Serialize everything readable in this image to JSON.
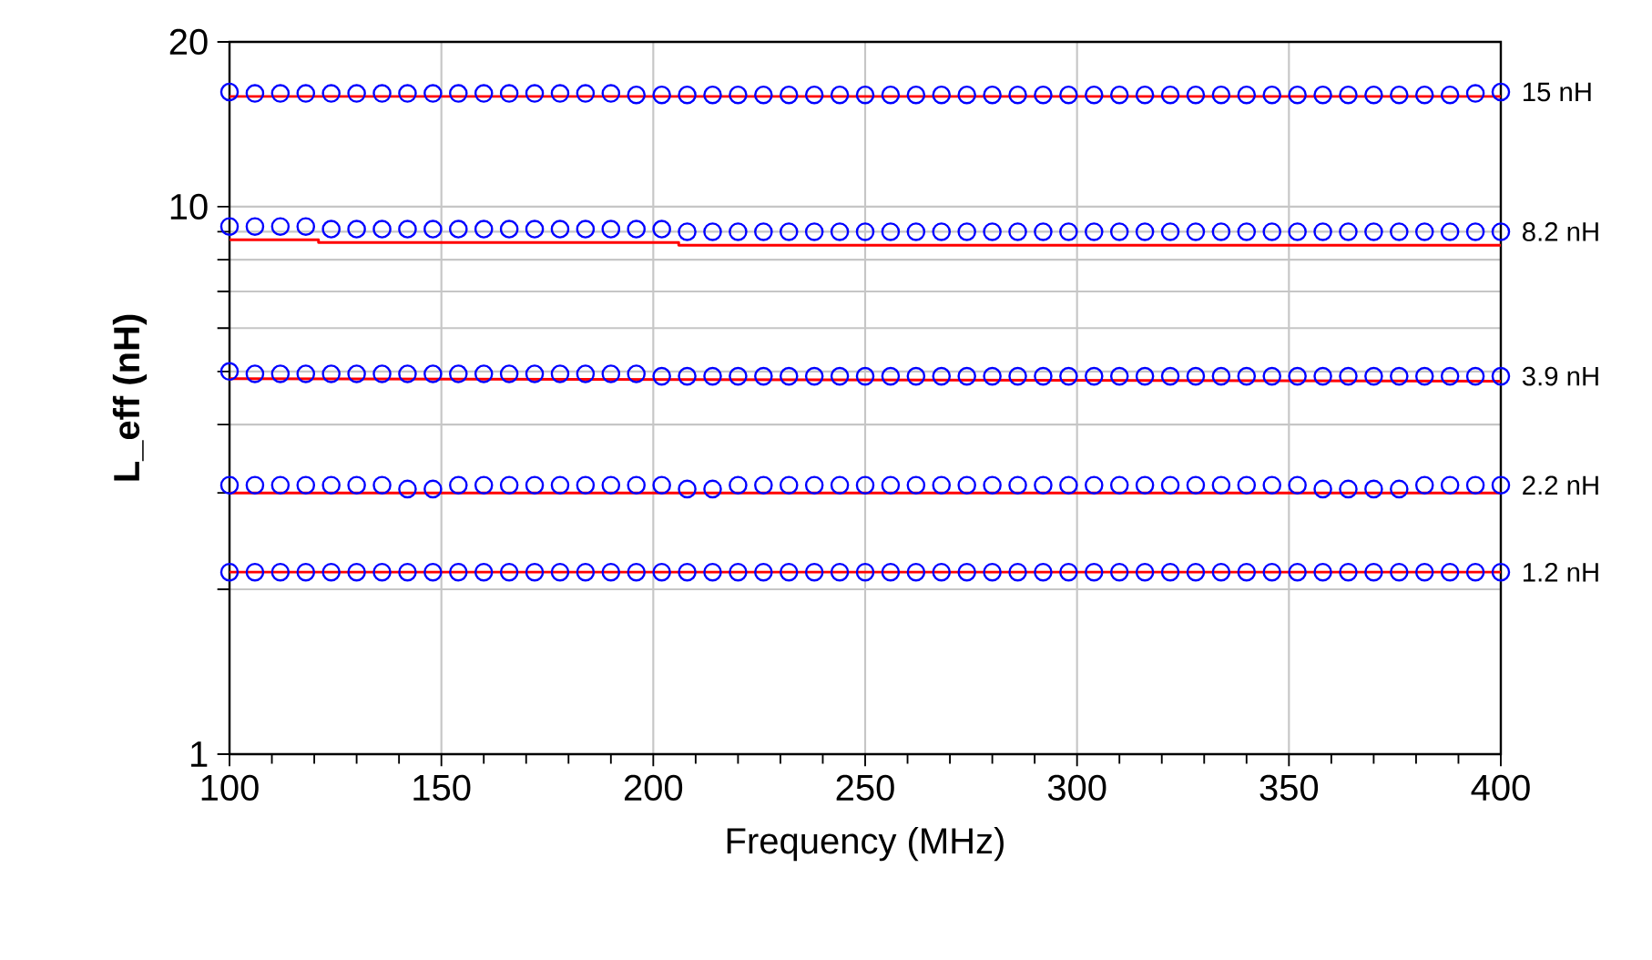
{
  "chart_data": {
    "type": "scatter",
    "xlabel": "Frequency (MHz)",
    "ylabel": "L_eff (nH)",
    "log": "y",
    "grid": true,
    "x": [
      100,
      106,
      112,
      118,
      124,
      130,
      136,
      142,
      148,
      154,
      160,
      166,
      172,
      178,
      184,
      190,
      196,
      202,
      208,
      214,
      220,
      226,
      232,
      238,
      244,
      250,
      256,
      262,
      268,
      274,
      280,
      286,
      292,
      298,
      304,
      310,
      316,
      322,
      328,
      334,
      340,
      346,
      352,
      358,
      364,
      370,
      376,
      382,
      388,
      394,
      400
    ],
    "xlim": [
      100,
      400
    ],
    "xticks": [
      100,
      150,
      200,
      250,
      300,
      350,
      400
    ],
    "ylim": [
      1,
      20
    ],
    "yticks": [
      1,
      {
        "value": 2,
        "label": null
      },
      {
        "value": 3,
        "label": null
      },
      {
        "value": 4,
        "label": null
      },
      {
        "value": 5,
        "label": null
      },
      {
        "value": 6,
        "label": null
      },
      {
        "value": 7,
        "label": null
      },
      {
        "value": 8,
        "label": null
      },
      {
        "value": 9,
        "label": null
      },
      10,
      20
    ],
    "series": [
      {
        "marker": "circle",
        "color": "#0000ff",
        "values": [
          16.2,
          16.1,
          16.1,
          16.1,
          16.1,
          16.1,
          16.1,
          16.1,
          16.1,
          16.1,
          16.1,
          16.1,
          16.1,
          16.1,
          16.1,
          16.1,
          16.0,
          16.0,
          16.0,
          16.0,
          16.0,
          16.0,
          16.0,
          16.0,
          16.0,
          16.0,
          16.0,
          16.0,
          16.0,
          16.0,
          16.0,
          16.0,
          16.0,
          16.0,
          16.0,
          16.0,
          16.0,
          16.0,
          16.0,
          16.0,
          16.0,
          16.0,
          16.0,
          16.0,
          16.0,
          16.0,
          16.0,
          16.0,
          16.0,
          16.1,
          16.2
        ]
      },
      {
        "marker": "circle",
        "color": "#0000ff",
        "values": [
          9.2,
          9.2,
          9.2,
          9.2,
          9.1,
          9.1,
          9.1,
          9.1,
          9.1,
          9.1,
          9.1,
          9.1,
          9.1,
          9.1,
          9.1,
          9.1,
          9.1,
          9.1,
          9.0,
          9.0,
          9.0,
          9.0,
          9.0,
          9.0,
          9.0,
          9.0,
          9.0,
          9.0,
          9.0,
          9.0,
          9.0,
          9.0,
          9.0,
          9.0,
          9.0,
          9.0,
          9.0,
          9.0,
          9.0,
          9.0,
          9.0,
          9.0,
          9.0,
          9.0,
          9.0,
          9.0,
          9.0,
          9.0,
          9.0,
          9.0,
          9.0
        ]
      },
      {
        "marker": "circle",
        "color": "#0000ff",
        "values": [
          5.0,
          4.95,
          4.95,
          4.95,
          4.95,
          4.95,
          4.95,
          4.95,
          4.95,
          4.95,
          4.95,
          4.95,
          4.95,
          4.95,
          4.95,
          4.95,
          4.95,
          4.9,
          4.9,
          4.9,
          4.9,
          4.9,
          4.9,
          4.9,
          4.9,
          4.9,
          4.9,
          4.9,
          4.9,
          4.9,
          4.9,
          4.9,
          4.9,
          4.9,
          4.9,
          4.9,
          4.9,
          4.9,
          4.9,
          4.9,
          4.9,
          4.9,
          4.9,
          4.9,
          4.9,
          4.9,
          4.9,
          4.9,
          4.9,
          4.9,
          4.9
        ]
      },
      {
        "marker": "circle",
        "color": "#0000ff",
        "values": [
          3.1,
          3.1,
          3.1,
          3.1,
          3.1,
          3.1,
          3.1,
          3.05,
          3.05,
          3.1,
          3.1,
          3.1,
          3.1,
          3.1,
          3.1,
          3.1,
          3.1,
          3.1,
          3.05,
          3.05,
          3.1,
          3.1,
          3.1,
          3.1,
          3.1,
          3.1,
          3.1,
          3.1,
          3.1,
          3.1,
          3.1,
          3.1,
          3.1,
          3.1,
          3.1,
          3.1,
          3.1,
          3.1,
          3.1,
          3.1,
          3.1,
          3.1,
          3.1,
          3.05,
          3.05,
          3.05,
          3.05,
          3.1,
          3.1,
          3.1,
          3.1
        ]
      },
      {
        "marker": "circle",
        "color": "#0000ff",
        "values": [
          2.15,
          2.15,
          2.15,
          2.15,
          2.15,
          2.15,
          2.15,
          2.15,
          2.15,
          2.15,
          2.15,
          2.15,
          2.15,
          2.15,
          2.15,
          2.15,
          2.15,
          2.15,
          2.15,
          2.15,
          2.15,
          2.15,
          2.15,
          2.15,
          2.15,
          2.15,
          2.15,
          2.15,
          2.15,
          2.15,
          2.15,
          2.15,
          2.15,
          2.15,
          2.15,
          2.15,
          2.15,
          2.15,
          2.15,
          2.15,
          2.15,
          2.15,
          2.15,
          2.15,
          2.15,
          2.15,
          2.15,
          2.15,
          2.15,
          2.15,
          2.15
        ]
      },
      {
        "type": "line",
        "marker": "none",
        "color": "#ff0000",
        "x": [
          100,
          400
        ],
        "values": [
          15.9,
          15.9
        ]
      },
      {
        "type": "line",
        "marker": "none",
        "color": "#ff0000",
        "x": [
          100,
          121,
          121,
          206,
          206,
          400
        ],
        "values": [
          8.7,
          8.7,
          8.6,
          8.6,
          8.5,
          8.5
        ]
      },
      {
        "type": "line",
        "marker": "none",
        "color": "#ff0000",
        "x": [
          100,
          400
        ],
        "values": [
          4.85,
          4.8
        ]
      },
      {
        "type": "line",
        "marker": "none",
        "color": "#ff0000",
        "x": [
          100,
          400
        ],
        "values": [
          3.0,
          3.0
        ]
      },
      {
        "type": "line",
        "marker": "none",
        "color": "#ff0000",
        "x": [
          100,
          400
        ],
        "values": [
          2.15,
          2.15
        ]
      }
    ],
    "annotations": [
      "15 nH",
      "8.2 nH",
      "3.9 nH",
      "2.2 nH",
      "1.2 nH"
    ]
  }
}
